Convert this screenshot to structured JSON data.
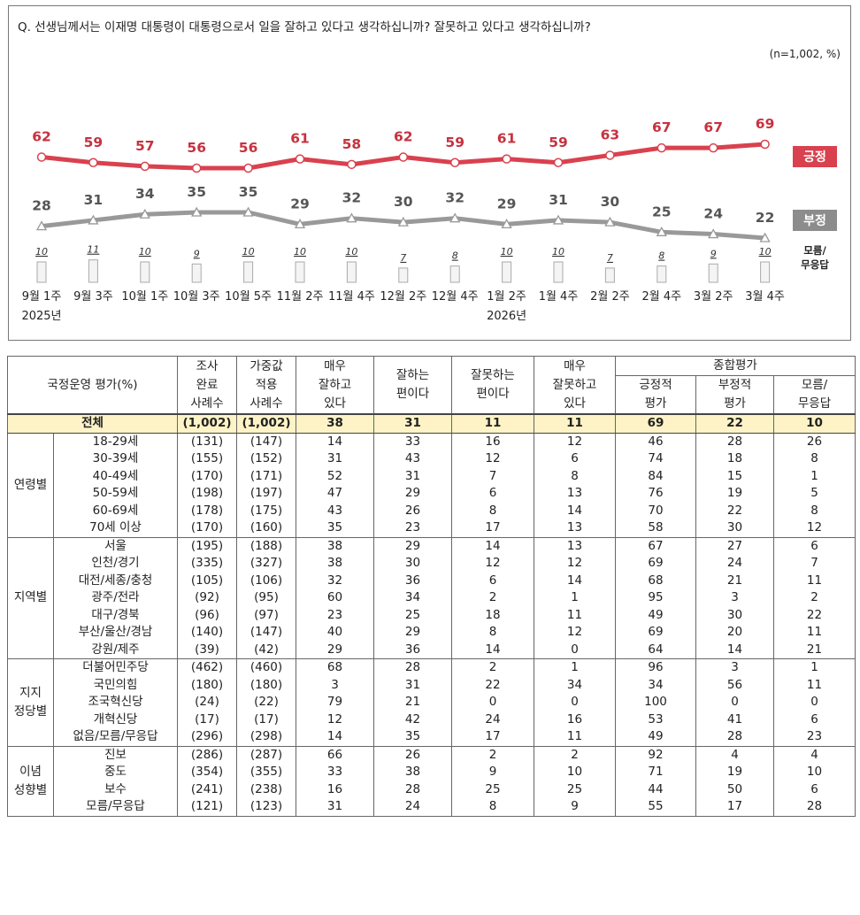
{
  "chart_data": {
    "type": "line",
    "title": "Q. 선생님께서는 이재명 대통령이 대통령으로서 일을 잘하고 있다고 생각하십니까? 잘못하고 있다고 생각하십니까?",
    "note": "(n=1,002, %)",
    "categories": [
      "9월 1주",
      "9월 3주",
      "10월 1주",
      "10월 3주",
      "10월 5주",
      "11월 2주",
      "11월 4주",
      "12월 2주",
      "12월 4주",
      "1월 2주",
      "1월 4주",
      "2월 2주",
      "2월 4주",
      "3월 2주",
      "3월 4주"
    ],
    "year_labels": {
      "first": "2025년",
      "second": "2026년"
    },
    "series": [
      {
        "name": "긍정",
        "color": "#d9414e",
        "values": [
          62,
          59,
          57,
          56,
          56,
          61,
          58,
          62,
          59,
          61,
          59,
          63,
          67,
          67,
          69
        ]
      },
      {
        "name": "부정",
        "color": "#999999",
        "values": [
          28,
          31,
          34,
          35,
          35,
          29,
          32,
          30,
          32,
          29,
          31,
          30,
          25,
          24,
          22
        ]
      },
      {
        "name": "모름/\n무응답",
        "color": "#bbbbbb",
        "values": [
          10,
          11,
          10,
          9,
          10,
          10,
          10,
          7,
          8,
          10,
          10,
          7,
          8,
          9,
          10
        ]
      }
    ],
    "legend_labels": [
      "긍정",
      "부정",
      "모름/",
      "무응답"
    ]
  },
  "table": {
    "header": {
      "row_label": "국정운영 평가(%)",
      "cols": [
        [
          "조사",
          "완료",
          "사례수"
        ],
        [
          "가중값",
          "적용",
          "사례수"
        ],
        [
          "매우",
          "잘하고",
          "있다"
        ],
        [
          "잘하는",
          "편이다"
        ],
        [
          "잘못하는",
          "편이다"
        ],
        [
          "매우",
          "잘못하고",
          "있다"
        ]
      ],
      "group": "종합평가",
      "subcols": [
        [
          "긍정적",
          "평가"
        ],
        [
          "부정적",
          "평가"
        ],
        [
          "모름/",
          "무응답"
        ]
      ]
    },
    "total": {
      "label": "전체",
      "values": [
        "(1,002)",
        "(1,002)",
        "38",
        "31",
        "11",
        "11",
        "69",
        "22",
        "10"
      ]
    },
    "groups": [
      {
        "name": "연령별",
        "rows": [
          {
            "label": "18-29세",
            "values": [
              "(131)",
              "(147)",
              "14",
              "33",
              "16",
              "12",
              "46",
              "28",
              "26"
            ]
          },
          {
            "label": "30-39세",
            "values": [
              "(155)",
              "(152)",
              "31",
              "43",
              "12",
              "6",
              "74",
              "18",
              "8"
            ]
          },
          {
            "label": "40-49세",
            "values": [
              "(170)",
              "(171)",
              "52",
              "31",
              "7",
              "8",
              "84",
              "15",
              "1"
            ]
          },
          {
            "label": "50-59세",
            "values": [
              "(198)",
              "(197)",
              "47",
              "29",
              "6",
              "13",
              "76",
              "19",
              "5"
            ]
          },
          {
            "label": "60-69세",
            "values": [
              "(178)",
              "(175)",
              "43",
              "26",
              "8",
              "14",
              "70",
              "22",
              "8"
            ]
          },
          {
            "label": "70세 이상",
            "values": [
              "(170)",
              "(160)",
              "35",
              "23",
              "17",
              "13",
              "58",
              "30",
              "12"
            ]
          }
        ]
      },
      {
        "name": "지역별",
        "rows": [
          {
            "label": "서울",
            "values": [
              "(195)",
              "(188)",
              "38",
              "29",
              "14",
              "13",
              "67",
              "27",
              "6"
            ]
          },
          {
            "label": "인천/경기",
            "values": [
              "(335)",
              "(327)",
              "38",
              "30",
              "12",
              "12",
              "69",
              "24",
              "7"
            ]
          },
          {
            "label": "대전/세종/충청",
            "values": [
              "(105)",
              "(106)",
              "32",
              "36",
              "6",
              "14",
              "68",
              "21",
              "11"
            ]
          },
          {
            "label": "광주/전라",
            "values": [
              "(92)",
              "(95)",
              "60",
              "34",
              "2",
              "1",
              "95",
              "3",
              "2"
            ]
          },
          {
            "label": "대구/경북",
            "values": [
              "(96)",
              "(97)",
              "23",
              "25",
              "18",
              "11",
              "49",
              "30",
              "22"
            ]
          },
          {
            "label": "부산/울산/경남",
            "values": [
              "(140)",
              "(147)",
              "40",
              "29",
              "8",
              "12",
              "69",
              "20",
              "11"
            ]
          },
          {
            "label": "강원/제주",
            "values": [
              "(39)",
              "(42)",
              "29",
              "36",
              "14",
              "0",
              "64",
              "14",
              "21"
            ]
          }
        ]
      },
      {
        "name": "지지\n정당별",
        "rows": [
          {
            "label": "더불어민주당",
            "values": [
              "(462)",
              "(460)",
              "68",
              "28",
              "2",
              "1",
              "96",
              "3",
              "1"
            ]
          },
          {
            "label": "국민의힘",
            "values": [
              "(180)",
              "(180)",
              "3",
              "31",
              "22",
              "34",
              "34",
              "56",
              "11"
            ]
          },
          {
            "label": "조국혁신당",
            "values": [
              "(24)",
              "(22)",
              "79",
              "21",
              "0",
              "0",
              "100",
              "0",
              "0"
            ]
          },
          {
            "label": "개혁신당",
            "values": [
              "(17)",
              "(17)",
              "12",
              "42",
              "24",
              "16",
              "53",
              "41",
              "6"
            ]
          },
          {
            "label": "없음/모름/무응답",
            "values": [
              "(296)",
              "(298)",
              "14",
              "35",
              "17",
              "11",
              "49",
              "28",
              "23"
            ]
          }
        ]
      },
      {
        "name": "이념\n성향별",
        "rows": [
          {
            "label": "진보",
            "values": [
              "(286)",
              "(287)",
              "66",
              "26",
              "2",
              "2",
              "92",
              "4",
              "4"
            ]
          },
          {
            "label": "중도",
            "values": [
              "(354)",
              "(355)",
              "33",
              "38",
              "9",
              "10",
              "71",
              "19",
              "10"
            ]
          },
          {
            "label": "보수",
            "values": [
              "(241)",
              "(238)",
              "16",
              "28",
              "25",
              "25",
              "44",
              "50",
              "6"
            ]
          },
          {
            "label": "모름/무응답",
            "values": [
              "(121)",
              "(123)",
              "31",
              "24",
              "8",
              "9",
              "55",
              "17",
              "28"
            ]
          }
        ]
      }
    ]
  }
}
